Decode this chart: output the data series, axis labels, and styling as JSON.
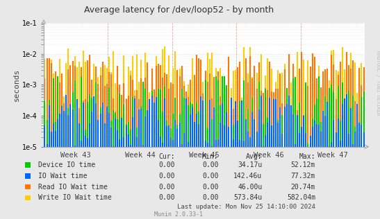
{
  "title": "Average latency for /dev/loop52 - by month",
  "ylabel": "seconds",
  "right_label": "RRDTOOL / TOBI OETIKER",
  "background_color": "#e8e8e8",
  "plot_background": "#ffffff",
  "grid_color_dot": "#cccccc",
  "dashed_red": "#ff9999",
  "week_labels": [
    "Week 43",
    "Week 44",
    "Week 45",
    "Week 46",
    "Week 47"
  ],
  "colors": {
    "device_io": "#00cc00",
    "io_wait": "#0066ff",
    "read_io_wait": "#ff7700",
    "write_io_wait": "#ffcc00"
  },
  "legend": [
    {
      "label": "Device IO time",
      "color": "#00cc00"
    },
    {
      "label": "IO Wait time",
      "color": "#0066ff"
    },
    {
      "label": "Read IO Wait time",
      "color": "#ff7700"
    },
    {
      "label": "Write IO Wait time",
      "color": "#ffcc00"
    }
  ],
  "legend_table": {
    "headers": [
      "Cur:",
      "Min:",
      "Avg:",
      "Max:"
    ],
    "rows": [
      [
        "0.00",
        "0.00",
        "34.17u",
        "52.12m"
      ],
      [
        "0.00",
        "0.00",
        "142.46u",
        "77.32m"
      ],
      [
        "0.00",
        "0.00",
        "46.00u",
        "20.74m"
      ],
      [
        "0.00",
        "0.00",
        "573.84u",
        "582.04m"
      ]
    ]
  },
  "footer": "Munin 2.0.33-1",
  "last_update": "Last update: Mon Nov 25 14:10:00 2024",
  "ylim_low": 1e-05,
  "ylim_high": 0.1,
  "num_weeks": 5,
  "total_spikes": 30,
  "seed": 7
}
